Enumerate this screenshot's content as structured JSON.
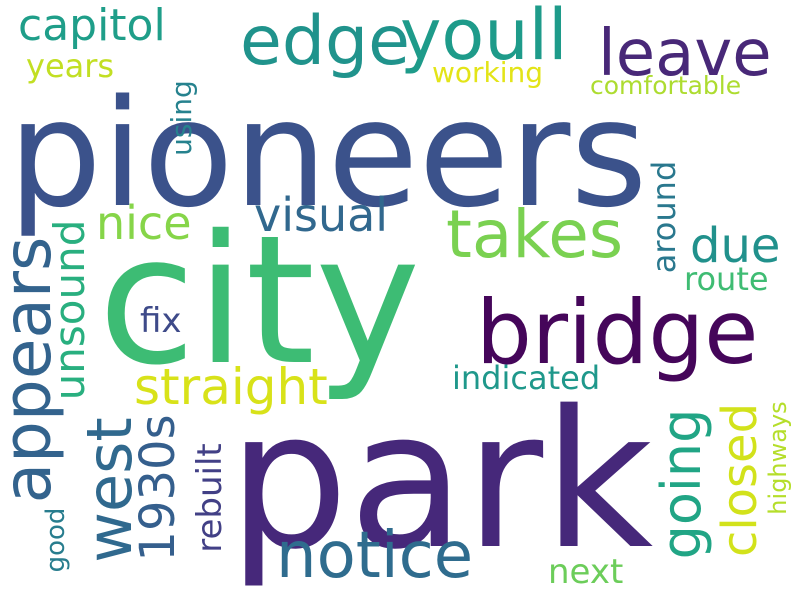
{
  "words": {
    "pioneers": {
      "text": "pioneers",
      "color": "#3b528b"
    },
    "city": {
      "text": "city",
      "color": "#3dbc74"
    },
    "park": {
      "text": "park",
      "color": "#46287a"
    },
    "bridge": {
      "text": "bridge",
      "color": "#45065a"
    },
    "edge": {
      "text": "edge",
      "color": "#20938c"
    },
    "youll": {
      "text": "youll",
      "color": "#1e9b8a"
    },
    "leave": {
      "text": "leave",
      "color": "#482878"
    },
    "capitol": {
      "text": "capitol",
      "color": "#1f9e89"
    },
    "years": {
      "text": "years",
      "color": "#c2df23"
    },
    "using": {
      "text": "using",
      "color": "#26828e"
    },
    "working": {
      "text": "working",
      "color": "#e3e418"
    },
    "comfortable": {
      "text": "comfortable",
      "color": "#addc30"
    },
    "takes": {
      "text": "takes",
      "color": "#7ad151"
    },
    "nice": {
      "text": "nice",
      "color": "#86d549"
    },
    "visual": {
      "text": "visual",
      "color": "#31688e"
    },
    "due": {
      "text": "due",
      "color": "#21918c"
    },
    "around": {
      "text": "around",
      "color": "#2a788e"
    },
    "route": {
      "text": "route",
      "color": "#3fbc73"
    },
    "appears": {
      "text": "appears",
      "color": "#33638d"
    },
    "unsound": {
      "text": "unsound",
      "color": "#29af7f"
    },
    "fix": {
      "text": "fix",
      "color": "#3e4a89"
    },
    "straight": {
      "text": "straight",
      "color": "#d8e219"
    },
    "indicated": {
      "text": "indicated",
      "color": "#1f988b"
    },
    "west": {
      "text": "west",
      "color": "#30698e"
    },
    "1930s": {
      "text": "1930s",
      "color": "#355f8d"
    },
    "rebuilt": {
      "text": "rebuilt",
      "color": "#424086"
    },
    "going": {
      "text": "going",
      "color": "#21a585"
    },
    "closed": {
      "text": "closed",
      "color": "#d2e21b"
    },
    "highways": {
      "text": "highways",
      "color": "#b5de2b"
    },
    "notice": {
      "text": "notice",
      "color": "#2f6c8e"
    },
    "good": {
      "text": "good",
      "color": "#287d8e"
    },
    "next": {
      "text": "next",
      "color": "#6ccd5a"
    }
  }
}
